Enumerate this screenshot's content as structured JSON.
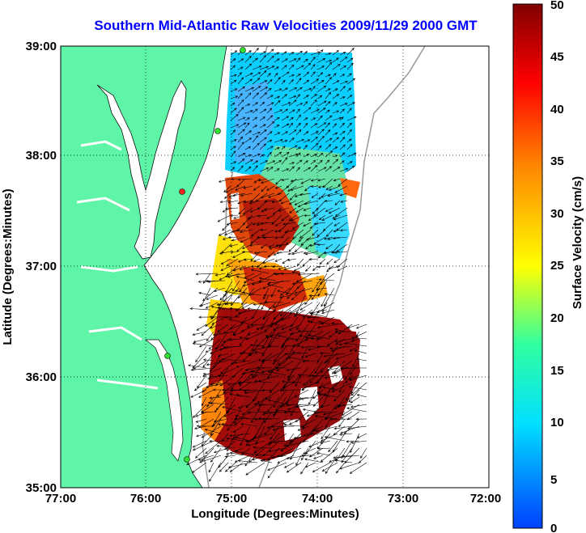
{
  "title": "Southern Mid-Atlantic Raw Velocities 2009/11/29 2000 GMT",
  "map": {
    "x_axis": {
      "label": "Longitude (Degrees:Minutes)",
      "ticks": [
        "77:00",
        "76:00",
        "75:00",
        "74:00",
        "73:00",
        "72:00"
      ]
    },
    "y_axis": {
      "label": "Latitude (Degrees:Minutes)",
      "ticks": [
        "35:00",
        "36:00",
        "37:00",
        "38:00",
        "39:00"
      ]
    },
    "land_color": "#5ef5a8",
    "grid": "dotted"
  },
  "colorbar": {
    "label": "Surface Velocity (cm/s)",
    "ticks": [
      "0",
      "5",
      "10",
      "15",
      "20",
      "25",
      "30",
      "35",
      "40",
      "45",
      "50"
    ],
    "range": [
      0,
      50
    ],
    "colormap": [
      "#0000ff",
      "#00ffff",
      "#ffff00",
      "#ff0000",
      "#800000"
    ]
  }
}
